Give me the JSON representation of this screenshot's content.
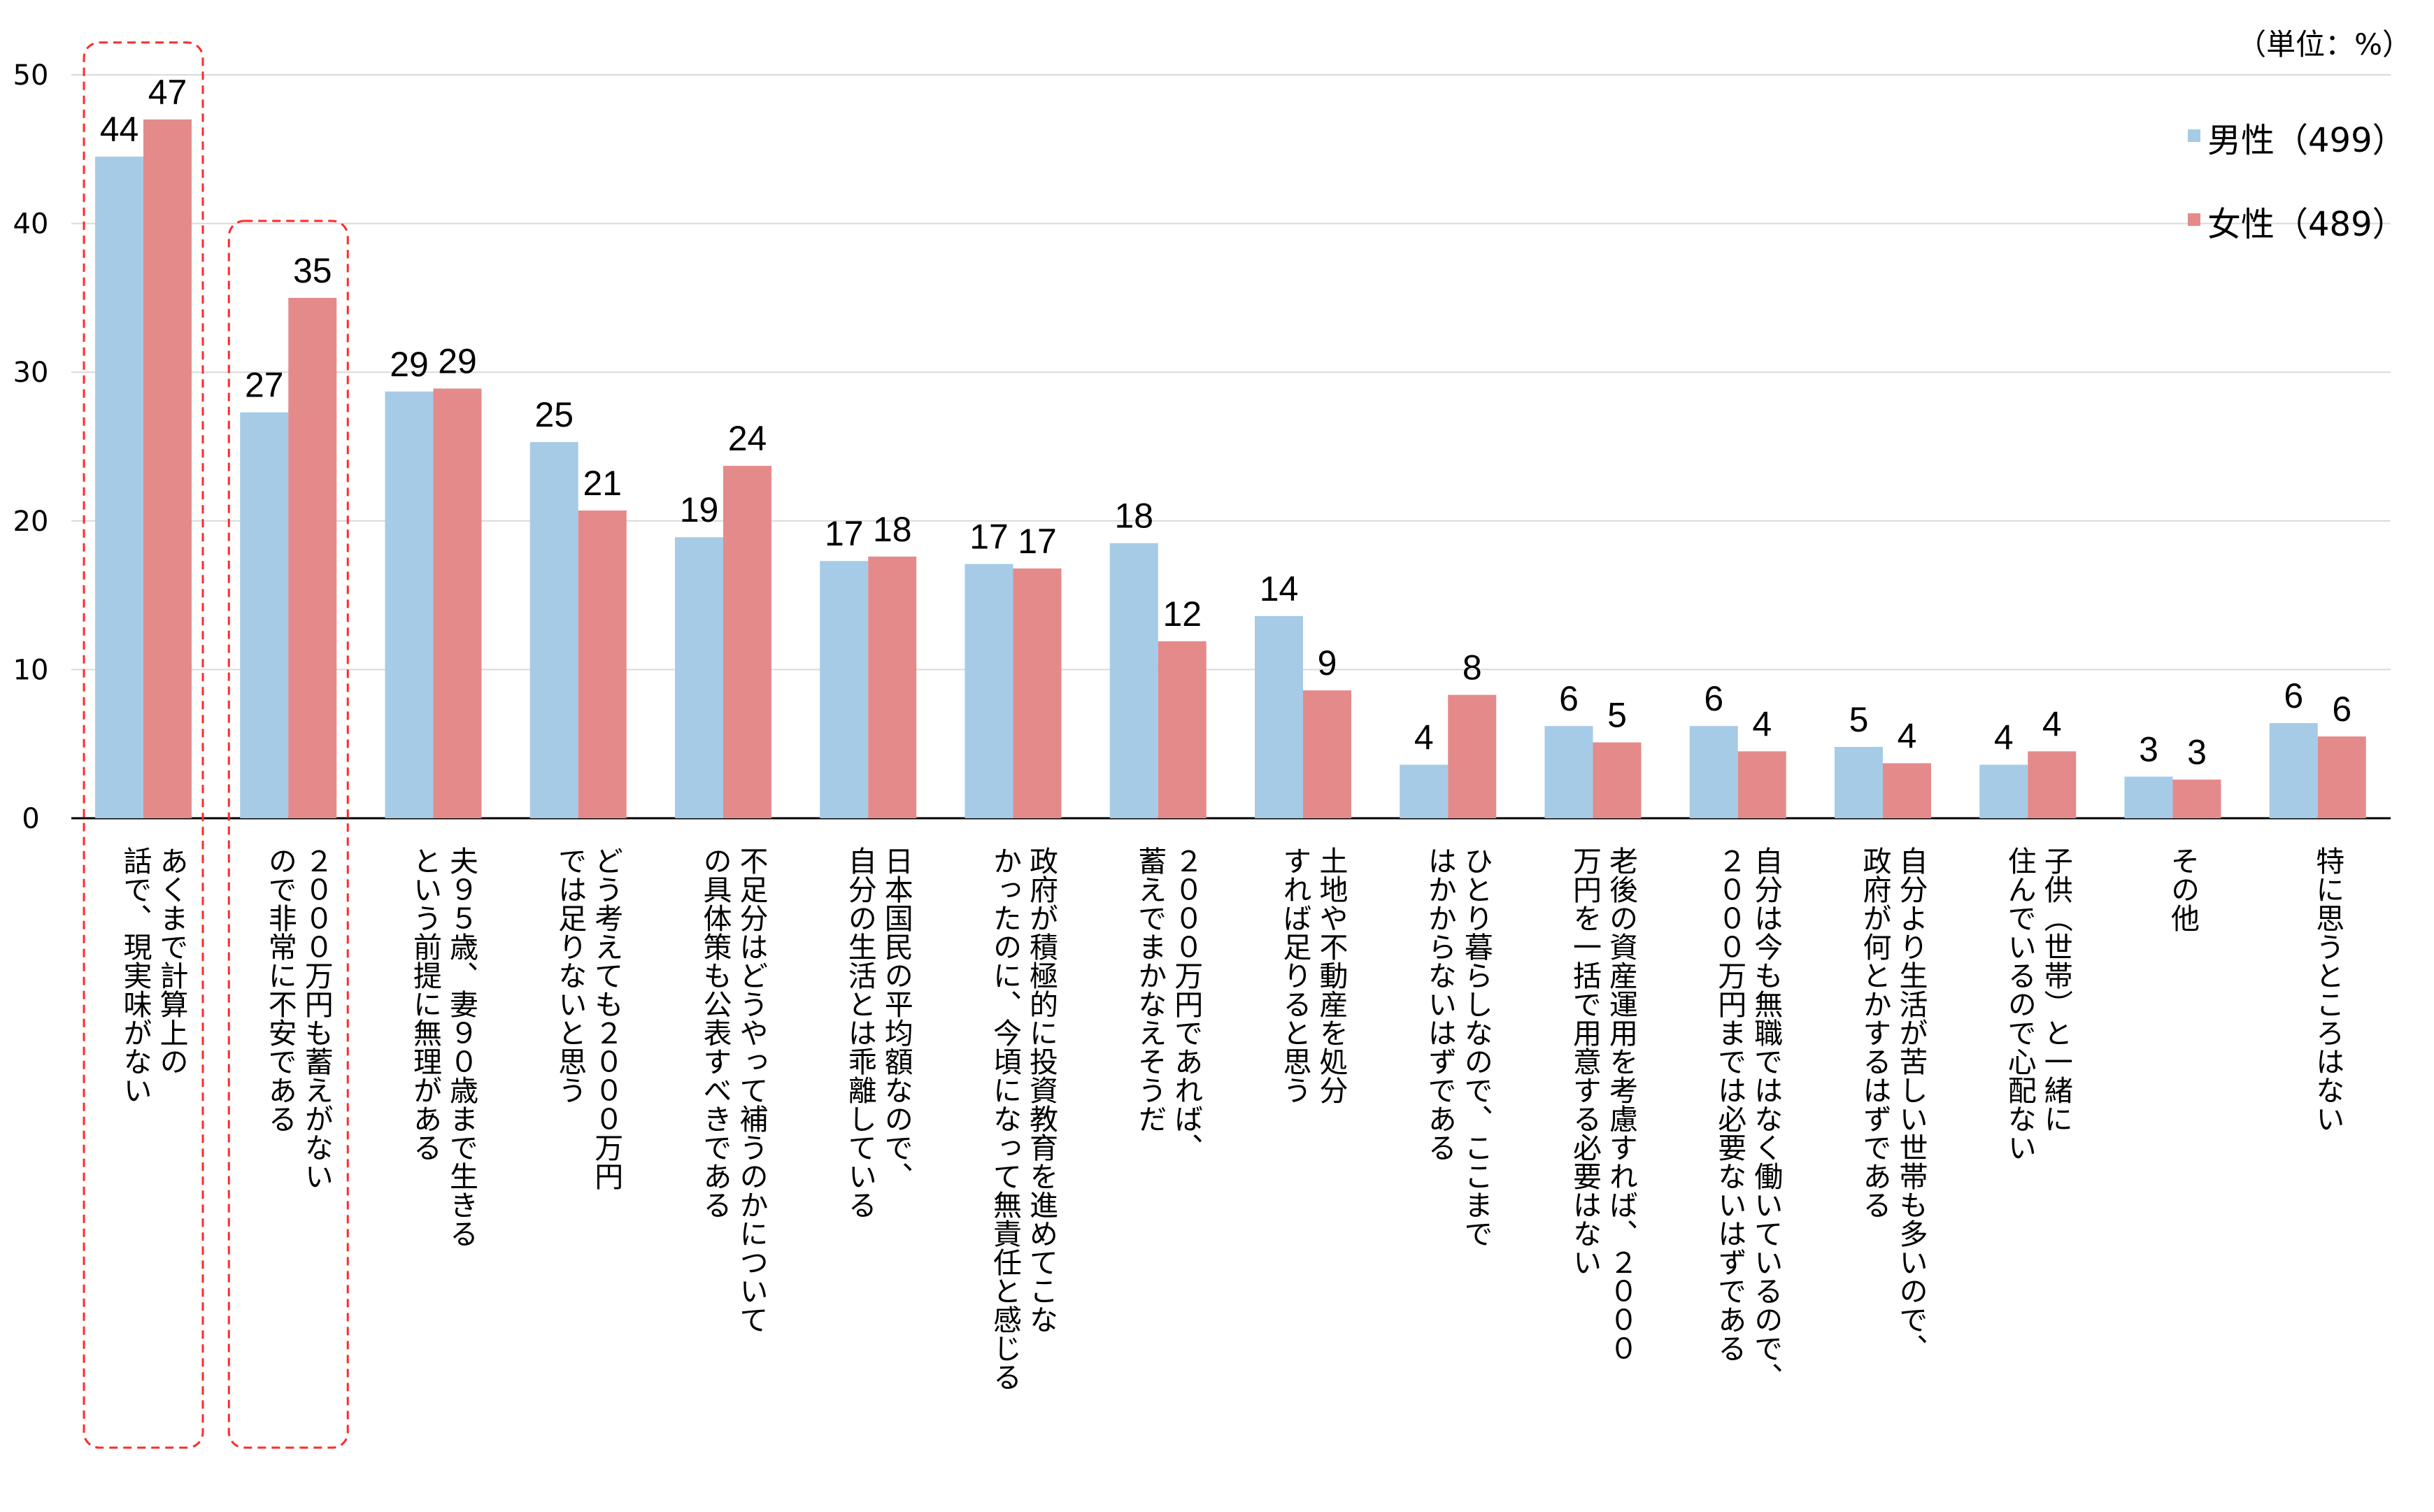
{
  "chart_data": {
    "type": "bar",
    "unit_label": "（単位：%）",
    "ylim": [
      0,
      50
    ],
    "yticks": [
      0,
      10,
      20,
      30,
      40,
      50
    ],
    "grid": true,
    "legend_position": "top-right",
    "colors": {
      "male": "#a6cbe6",
      "female": "#e58a8a",
      "highlight": "#ff2a2a"
    },
    "categories": [
      [
        "あくまで計算上の",
        "話で、現実味がない"
      ],
      [
        "２０００万円も蓄えがない",
        "ので非常に不安である"
      ],
      [
        "夫９５歳、妻９０歳まで生きる",
        "という前提に無理がある"
      ],
      [
        "どう考えても２０００万円",
        "では足りないと思う"
      ],
      [
        "不足分はどうやって補うのかについて",
        "の具体策も公表すべきである"
      ],
      [
        "日本国民の平均額なので、",
        "自分の生活とは乖離している"
      ],
      [
        "政府が積極的に投資教育を進めてこな",
        "かったのに、今頃になって無責任と感じる"
      ],
      [
        "２０００万円であれば、",
        "蓄えでまかなえそうだ"
      ],
      [
        "土地や不動産を処分",
        "すれば足りると思う"
      ],
      [
        "ひとり暮らしなので、ここまで",
        "はかからないはずである"
      ],
      [
        "老後の資産運用を考慮すれば、２０００",
        "万円を一括で用意する必要はない"
      ],
      [
        "自分は今も無職ではなく働いているので、",
        "２０００万円までは必要ないはずである"
      ],
      [
        "自分より生活が苦しい世帯も多いので、",
        "政府が何とかするはずである"
      ],
      [
        "子供（世帯）と一緒に",
        "住んでいるので心配ない"
      ],
      [
        "その他"
      ],
      [
        "特に思うところはない"
      ]
    ],
    "series": [
      {
        "name": "男性（499）",
        "values": [
          44.5,
          27.3,
          28.7,
          25.3,
          18.9,
          17.3,
          17.1,
          18.5,
          13.6,
          3.6,
          6.2,
          6.2,
          4.8,
          3.6,
          2.8,
          6.4
        ],
        "labels": [
          "44",
          "27",
          "29",
          "25",
          "19",
          "17",
          "17",
          "18",
          "14",
          "4",
          "6",
          "6",
          "5",
          "4",
          "3",
          "6"
        ]
      },
      {
        "name": "女性（489）",
        "values": [
          47.0,
          35.0,
          28.9,
          20.7,
          23.7,
          17.6,
          16.8,
          11.9,
          8.6,
          8.3,
          5.1,
          4.5,
          3.7,
          4.5,
          2.6,
          5.5
        ],
        "labels": [
          "47",
          "35",
          "29",
          "21",
          "24",
          "18",
          "17",
          "12",
          "9",
          "8",
          "5",
          "4",
          "4",
          "4",
          "3",
          "6"
        ]
      }
    ],
    "highlighted_categories": [
      0,
      1
    ]
  }
}
